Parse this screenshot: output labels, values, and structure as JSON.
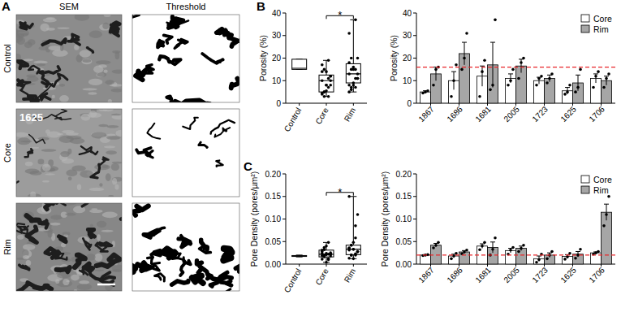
{
  "figure": {
    "panel_labels": [
      "A",
      "B",
      "C"
    ],
    "columns": [
      "SEM",
      "Threshold"
    ],
    "rows": [
      "Control",
      "Core",
      "Rim"
    ],
    "inset_label": "1625"
  },
  "chart_data": [
    {
      "type": "box",
      "y_label": "Porosity (%)",
      "categories": [
        "Control",
        "Core",
        "Rim"
      ],
      "color": "#ffffff",
      "stats": [
        {
          "min": 15,
          "q1": 15,
          "median": 15.5,
          "q3": 19.5,
          "max": 19.5
        },
        {
          "min": 3,
          "q1": 5,
          "median": 10,
          "q3": 12.5,
          "max": 19,
          "points": [
            4.5,
            5,
            5.5,
            3,
            10,
            17,
            3,
            14,
            19,
            8,
            10,
            15,
            8,
            11,
            12,
            4,
            5,
            8,
            7,
            12,
            14
          ]
        },
        {
          "min": 5,
          "q1": 9,
          "median": 13,
          "q3": 17.5,
          "max": 37,
          "points": [
            8,
            15,
            16,
            15,
            20,
            31,
            6,
            8,
            37,
            11,
            18,
            20,
            9,
            11,
            13,
            5,
            7,
            15,
            7,
            11,
            13
          ]
        }
      ],
      "annotations": [
        {
          "text": "*",
          "between": [
            "Core",
            "Rim"
          ]
        }
      ],
      "ylim": [
        0,
        40
      ],
      "yticks": [
        0,
        10,
        20,
        30,
        40
      ]
    },
    {
      "type": "bar",
      "y_label": "Porosity (%)",
      "categories": [
        "1867",
        "1686",
        "1681",
        "2005",
        "1723",
        "1625",
        "1706"
      ],
      "series": [
        {
          "name": "Core",
          "color": "#ffffff",
          "values": [
            5,
            10,
            12,
            11,
            10,
            5.5,
            11
          ],
          "errors": [
            0.5,
            4,
            4.5,
            2,
            1.5,
            1.5,
            2
          ],
          "points": [
            [
              4.5,
              5,
              5.5
            ],
            [
              3,
              10,
              17
            ],
            [
              3,
              14,
              19
            ],
            [
              8,
              10,
              15
            ],
            [
              8,
              11,
              12
            ],
            [
              4,
              5,
              8
            ],
            [
              7,
              12,
              14
            ]
          ]
        },
        {
          "name": "Rim",
          "color": "#a6a6a6",
          "values": [
            13,
            22,
            17,
            16.5,
            11,
            9,
            10
          ],
          "errors": [
            3,
            5,
            10,
            3,
            1.5,
            3.5,
            2
          ],
          "points": [
            [
              8,
              15,
              16
            ],
            [
              15,
              20,
              31
            ],
            [
              6,
              8,
              37
            ],
            [
              11,
              18,
              20
            ],
            [
              9,
              11,
              13
            ],
            [
              5,
              7,
              15
            ],
            [
              7,
              11,
              13
            ]
          ]
        }
      ],
      "reference_line": {
        "value": 16,
        "color": "#e8262a",
        "line_style": "dashed"
      },
      "legend": "top-right",
      "ylim": [
        0,
        40
      ],
      "yticks": [
        0,
        10,
        20,
        30,
        40
      ]
    },
    {
      "type": "box",
      "y_label": "Pore Density (pores/µm²)",
      "categories": [
        "Control",
        "Core",
        "Rim"
      ],
      "color": "#ffffff",
      "stats": [
        {
          "min": 0.016,
          "q1": 0.017,
          "median": 0.018,
          "q3": 0.019,
          "max": 0.02
        },
        {
          "min": 0.004,
          "q1": 0.016,
          "median": 0.022,
          "q3": 0.031,
          "max": 0.048,
          "points": [
            0.019,
            0.02,
            0.021,
            0.012,
            0.018,
            0.024,
            0.032,
            0.04,
            0.048,
            0.022,
            0.031,
            0.037,
            0.004,
            0.01,
            0.022,
            0.011,
            0.016,
            0.024,
            0.022,
            0.025,
            0.028
          ]
        },
        {
          "min": 0.012,
          "q1": 0.021,
          "median": 0.033,
          "q3": 0.042,
          "max": 0.15,
          "points": [
            0.036,
            0.042,
            0.048,
            0.023,
            0.027,
            0.031,
            0.02,
            0.033,
            0.058,
            0.028,
            0.035,
            0.042,
            0.012,
            0.02,
            0.028,
            0.013,
            0.02,
            0.033,
            0.085,
            0.11,
            0.15
          ]
        }
      ],
      "annotations": [
        {
          "text": "*",
          "between": [
            "Core",
            "Rim"
          ]
        }
      ],
      "ylim": [
        0,
        0.2
      ],
      "yticks": [
        {
          "value": 0,
          "label": "0.00"
        },
        {
          "value": 0.05,
          "label": "0.05"
        },
        {
          "value": 0.1,
          "label": "0.10"
        },
        {
          "value": 0.15,
          "label": "0.15"
        },
        {
          "value": 0.2,
          "label": "0.20"
        }
      ]
    },
    {
      "type": "bar",
      "y_label": "Pore Density (pores/µm²)",
      "categories": [
        "1867",
        "1686",
        "1681",
        "2005",
        "1723",
        "1625",
        "1706"
      ],
      "series": [
        {
          "name": "Core",
          "color": "#ffffff",
          "values": [
            0.02,
            0.018,
            0.04,
            0.03,
            0.012,
            0.017,
            0.025
          ],
          "errors": [
            0.001,
            0.004,
            0.005,
            0.005,
            0.006,
            0.004,
            0.002
          ],
          "points": [
            [
              0.019,
              0.02,
              0.021
            ],
            [
              0.012,
              0.018,
              0.024
            ],
            [
              0.032,
              0.04,
              0.048
            ],
            [
              0.022,
              0.031,
              0.037
            ],
            [
              0.004,
              0.01,
              0.022
            ],
            [
              0.011,
              0.016,
              0.024
            ],
            [
              0.022,
              0.025,
              0.028
            ]
          ]
        },
        {
          "name": "Rim",
          "color": "#a6a6a6",
          "values": [
            0.042,
            0.027,
            0.037,
            0.035,
            0.02,
            0.022,
            0.115
          ],
          "errors": [
            0.004,
            0.003,
            0.012,
            0.005,
            0.005,
            0.006,
            0.018
          ],
          "points": [
            [
              0.036,
              0.042,
              0.048
            ],
            [
              0.023,
              0.027,
              0.031
            ],
            [
              0.02,
              0.033,
              0.058
            ],
            [
              0.028,
              0.035,
              0.042
            ],
            [
              0.012,
              0.02,
              0.028
            ],
            [
              0.013,
              0.02,
              0.033
            ],
            [
              0.085,
              0.11,
              0.15
            ]
          ]
        }
      ],
      "reference_line": {
        "value": 0.02,
        "color": "#e8262a",
        "line_style": "dashed"
      },
      "legend": "top-right",
      "ylim": [
        0,
        0.2
      ],
      "yticks": [
        {
          "value": 0,
          "label": "0.00"
        },
        {
          "value": 0.05,
          "label": "0.05"
        },
        {
          "value": 0.1,
          "label": "0.10"
        },
        {
          "value": 0.15,
          "label": "0.15"
        },
        {
          "value": 0.2,
          "label": "0.20"
        }
      ]
    }
  ]
}
